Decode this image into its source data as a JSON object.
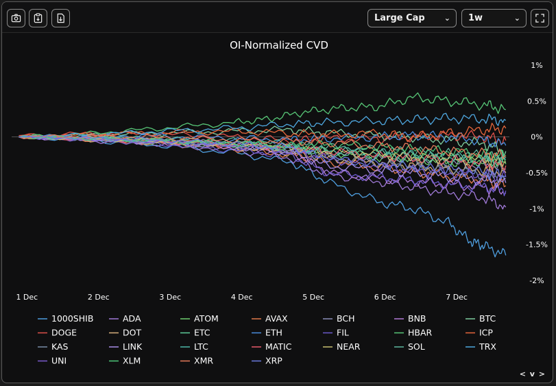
{
  "toolbar": {
    "buttons": [
      "camera-icon",
      "clipboard-icon",
      "download-icon"
    ],
    "market_select": "Large Cap",
    "interval_select": "1w",
    "fullscreen_icon": "expand-icon"
  },
  "footer_nav": "< v >",
  "colors": {
    "background": "#0f0f10",
    "text": "#ffffff",
    "zero_line": "#555555"
  },
  "chart_data": {
    "type": "line",
    "title": "OI-Normalized CVD",
    "y_axis": {
      "ticks": [
        "1%",
        "0.5%",
        "0%",
        "-0.5%",
        "-1%",
        "-1.5%",
        "-2%"
      ],
      "tick_values": [
        1,
        0.5,
        0,
        -0.5,
        -1,
        -1.5,
        -2
      ],
      "ylim": [
        -2,
        1
      ],
      "position": "right"
    },
    "x_axis": {
      "ticks": [
        "1 Dec",
        "2 Dec",
        "3 Dec",
        "4 Dec",
        "5 Dec",
        "6 Dec",
        "7 Dec"
      ],
      "tick_values": [
        0,
        1,
        2,
        3,
        4,
        5,
        6
      ],
      "xlim": [
        -0.1,
        6.85
      ]
    },
    "legend_position": "bottom",
    "series": [
      {
        "name": "1000SHIB",
        "color": "#4f9fe0",
        "x": [
          0,
          1,
          2,
          3,
          3.8,
          4.3,
          5,
          5.5,
          6,
          6.3,
          6.5,
          6.8
        ],
        "y": [
          0,
          -0.05,
          -0.12,
          -0.22,
          -0.35,
          -0.62,
          -0.9,
          -1.0,
          -1.2,
          -1.45,
          -1.52,
          -1.65
        ]
      },
      {
        "name": "ADA",
        "color": "#a07ad8",
        "x": [
          0,
          1,
          2,
          3,
          3.8,
          4.3,
          5,
          5.5,
          6,
          6.5,
          6.8
        ],
        "y": [
          0,
          -0.05,
          -0.1,
          -0.18,
          -0.3,
          -0.52,
          -0.62,
          -0.7,
          -0.78,
          -0.85,
          -0.98
        ]
      },
      {
        "name": "ATOM",
        "color": "#6fcf6f",
        "x": [
          0,
          1,
          2,
          3,
          3.8,
          4.3,
          5,
          5.5,
          6,
          6.5,
          6.8
        ],
        "y": [
          0,
          -0.03,
          -0.08,
          -0.12,
          -0.18,
          -0.2,
          -0.28,
          -0.3,
          -0.35,
          -0.32,
          -0.38
        ]
      },
      {
        "name": "AVAX",
        "color": "#e0784a",
        "x": [
          0,
          1,
          2,
          3,
          3.8,
          4.3,
          5,
          5.5,
          6,
          6.5,
          6.8
        ],
        "y": [
          0,
          -0.04,
          -0.09,
          -0.16,
          -0.25,
          -0.35,
          -0.42,
          -0.48,
          -0.55,
          -0.6,
          -0.68
        ]
      },
      {
        "name": "BCH",
        "color": "#8b8fb8",
        "x": [
          0,
          1,
          2,
          3,
          3.8,
          4.3,
          5,
          5.5,
          6,
          6.5,
          6.8
        ],
        "y": [
          0,
          -0.02,
          -0.06,
          -0.1,
          -0.15,
          -0.22,
          -0.3,
          -0.33,
          -0.38,
          -0.4,
          -0.45
        ]
      },
      {
        "name": "BNB",
        "color": "#b37cd9",
        "x": [
          0,
          1,
          2,
          3,
          3.8,
          4.3,
          5,
          5.5,
          6,
          6.5,
          6.8
        ],
        "y": [
          0,
          -0.03,
          -0.07,
          -0.13,
          -0.2,
          -0.48,
          -0.58,
          -0.62,
          -0.66,
          -0.7,
          -0.78
        ]
      },
      {
        "name": "BTC",
        "color": "#7fcfa0",
        "x": [
          0,
          1,
          2,
          3,
          3.8,
          4.3,
          5,
          5.5,
          6,
          6.5,
          6.8
        ],
        "y": [
          0,
          0.03,
          0.05,
          0.08,
          0.1,
          0.06,
          0.02,
          0.0,
          -0.05,
          -0.1,
          -0.2
        ]
      },
      {
        "name": "DOGE",
        "color": "#e0504a",
        "x": [
          0,
          1,
          2,
          3,
          3.8,
          4.3,
          5,
          5.5,
          6,
          6.5,
          6.8
        ],
        "y": [
          0.02,
          0.05,
          0.04,
          0.0,
          -0.05,
          -0.02,
          -0.03,
          0.0,
          0.02,
          0.0,
          -0.05
        ]
      },
      {
        "name": "DOT",
        "color": "#d9b07c",
        "x": [
          0,
          1,
          2,
          3,
          3.8,
          4.3,
          5,
          5.5,
          6,
          6.5,
          6.8
        ],
        "y": [
          0,
          -0.04,
          -0.08,
          -0.14,
          -0.22,
          -0.3,
          -0.36,
          -0.4,
          -0.44,
          -0.46,
          -0.5
        ]
      },
      {
        "name": "ETC",
        "color": "#5fcf9a",
        "x": [
          0,
          1,
          2,
          3,
          3.8,
          4.3,
          5,
          5.5,
          6,
          6.5,
          6.8
        ],
        "y": [
          0,
          -0.02,
          -0.06,
          -0.1,
          -0.16,
          -0.22,
          -0.26,
          -0.3,
          -0.32,
          -0.34,
          -0.36
        ]
      },
      {
        "name": "ETH",
        "color": "#4a8fe0",
        "x": [
          0,
          1,
          2,
          3,
          3.8,
          4.3,
          5,
          5.5,
          6,
          6.5,
          6.8
        ],
        "y": [
          0,
          0.02,
          0.01,
          -0.02,
          -0.04,
          -0.02,
          0.0,
          0.02,
          0.0,
          -0.05,
          -0.12
        ]
      },
      {
        "name": "FIL",
        "color": "#6a5acd",
        "x": [
          0,
          1,
          2,
          3,
          3.8,
          4.3,
          5,
          5.5,
          6,
          6.5,
          6.8
        ],
        "y": [
          0,
          -0.04,
          -0.1,
          -0.18,
          -0.26,
          -0.5,
          -0.56,
          -0.6,
          -0.66,
          -0.7,
          -0.75
        ]
      },
      {
        "name": "HBAR",
        "color": "#58c878",
        "x": [
          0,
          1,
          2,
          3,
          3.5,
          4,
          4.5,
          5,
          5.5,
          6,
          6.5,
          6.8
        ],
        "y": [
          0,
          0.05,
          0.12,
          0.2,
          0.25,
          0.35,
          0.4,
          0.42,
          0.55,
          0.5,
          0.45,
          0.38
        ]
      },
      {
        "name": "ICP",
        "color": "#e8673c",
        "x": [
          0,
          1,
          2,
          3,
          3.8,
          4.3,
          5,
          5.5,
          6,
          6.5,
          6.8
        ],
        "y": [
          0,
          0.03,
          0.06,
          0.08,
          0.05,
          0.03,
          0.05,
          0.0,
          0.05,
          0.1,
          0.12
        ]
      },
      {
        "name": "KAS",
        "color": "#7a8fa8",
        "x": [
          0,
          1,
          2,
          3,
          3.8,
          4.3,
          5,
          5.5,
          6,
          6.5,
          6.8
        ],
        "y": [
          0,
          -0.03,
          -0.07,
          -0.12,
          -0.18,
          -0.28,
          -0.36,
          -0.42,
          -0.46,
          -0.52,
          -0.58
        ]
      },
      {
        "name": "LINK",
        "color": "#a88ee8",
        "x": [
          0,
          1,
          2,
          3,
          3.8,
          4.3,
          5,
          5.5,
          6,
          6.5,
          6.8
        ],
        "y": [
          0,
          -0.03,
          -0.08,
          -0.14,
          -0.22,
          -0.4,
          -0.46,
          -0.5,
          -0.56,
          -0.6,
          -0.64
        ]
      },
      {
        "name": "LTC",
        "color": "#4fb8a8",
        "x": [
          0,
          1,
          2,
          3,
          3.8,
          4.3,
          5,
          5.5,
          6,
          6.5,
          6.8
        ],
        "y": [
          0,
          -0.02,
          -0.05,
          -0.09,
          -0.14,
          -0.18,
          -0.22,
          -0.25,
          -0.28,
          -0.3,
          -0.32
        ]
      },
      {
        "name": "MATIC",
        "color": "#e85a6a",
        "x": [
          0,
          1,
          2,
          3,
          3.8,
          4.3,
          5,
          5.5,
          6,
          6.5,
          6.8
        ],
        "y": [
          0,
          -0.03,
          -0.06,
          -0.1,
          -0.15,
          -0.2,
          -0.26,
          -0.3,
          -0.32,
          -0.38,
          -0.4
        ]
      },
      {
        "name": "NEAR",
        "color": "#c8c070",
        "x": [
          0,
          1,
          2,
          3,
          3.8,
          4.3,
          5,
          5.5,
          6,
          6.5,
          6.8
        ],
        "y": [
          0,
          -0.02,
          -0.06,
          -0.1,
          -0.15,
          -0.2,
          -0.24,
          -0.28,
          -0.3,
          -0.32,
          -0.35
        ]
      },
      {
        "name": "SOL",
        "color": "#5fb8a0",
        "x": [
          0,
          1,
          2,
          3,
          3.8,
          4.3,
          5,
          5.5,
          6,
          6.5,
          6.8
        ],
        "y": [
          0,
          -0.01,
          -0.03,
          -0.06,
          -0.1,
          -0.14,
          -0.18,
          -0.2,
          -0.24,
          -0.26,
          -0.28
        ]
      },
      {
        "name": "TRX",
        "color": "#4fa8e0",
        "x": [
          0,
          1,
          2,
          3,
          3.8,
          4.3,
          5,
          5.5,
          6,
          6.5,
          6.8
        ],
        "y": [
          0,
          0.03,
          0.08,
          0.12,
          0.18,
          0.2,
          0.22,
          0.24,
          0.26,
          0.25,
          0.23
        ]
      },
      {
        "name": "UNI",
        "color": "#7a5ad0",
        "x": [
          0,
          1,
          2,
          3,
          3.8,
          4.3,
          5,
          5.5,
          6,
          6.5,
          6.8
        ],
        "y": [
          0,
          -0.03,
          -0.07,
          -0.12,
          -0.2,
          -0.3,
          -0.4,
          -0.46,
          -0.5,
          -0.52,
          -0.56
        ]
      },
      {
        "name": "XLM",
        "color": "#4fc87a",
        "x": [
          0,
          1,
          2,
          3,
          3.8,
          4.3,
          5,
          5.5,
          6,
          6.5,
          6.8
        ],
        "y": [
          0,
          -0.02,
          -0.05,
          -0.08,
          -0.12,
          -0.1,
          -0.14,
          -0.18,
          -0.2,
          -0.24,
          -0.26
        ]
      },
      {
        "name": "XMR",
        "color": "#e87a5a",
        "x": [
          0,
          1,
          2,
          3,
          3.8,
          4.3,
          5,
          5.5,
          6,
          6.5,
          6.8
        ],
        "y": [
          0,
          0.01,
          -0.01,
          -0.04,
          -0.06,
          -0.08,
          -0.12,
          -0.16,
          -0.2,
          -0.24,
          -0.26
        ]
      },
      {
        "name": "XRP",
        "color": "#6a7ae0",
        "x": [
          0,
          1,
          2,
          3,
          3.8,
          4.3,
          5,
          5.5,
          6,
          6.5,
          6.8
        ],
        "y": [
          0,
          -0.02,
          -0.05,
          -0.1,
          -0.15,
          -0.3,
          -0.38,
          -0.42,
          -0.46,
          -0.5,
          -0.54
        ]
      }
    ]
  }
}
